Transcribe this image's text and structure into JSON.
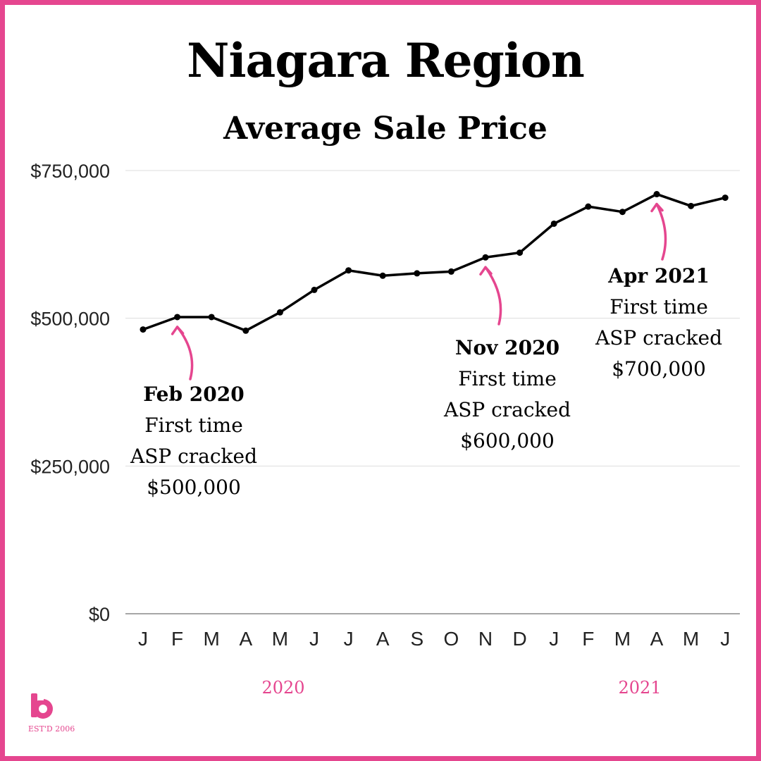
{
  "title": "Niagara Region",
  "subtitle": "Average Sale Price",
  "colors": {
    "accent": "#e5468f",
    "line": "#000000",
    "grid": "#dddddd"
  },
  "logo": {
    "icon": "b-monogram-icon",
    "text": "EST'D 2006"
  },
  "chart_data": {
    "type": "line",
    "title": "Niagara Region",
    "subtitle": "Average Sale Price",
    "categories": [
      "J",
      "F",
      "M",
      "A",
      "M",
      "J",
      "J",
      "A",
      "S",
      "O",
      "N",
      "D",
      "J",
      "F",
      "M",
      "A",
      "M",
      "J"
    ],
    "year_labels": [
      {
        "label": "2020",
        "from_index": 0,
        "to_index": 11
      },
      {
        "label": "2021",
        "from_index": 12,
        "to_index": 17
      }
    ],
    "series": [
      {
        "values": [
          481000,
          502000,
          502000,
          479000,
          510000,
          548000,
          581000,
          572000,
          576000,
          579000,
          603000,
          611000,
          660000,
          689000,
          680000,
          710000,
          690000,
          704000
        ]
      }
    ],
    "yticks": [
      0,
      250000,
      500000,
      750000
    ],
    "ytick_labels": [
      "$0",
      "$250,000",
      "$500,000",
      "$750,000"
    ],
    "ylim": [
      0,
      750000
    ],
    "grid": true,
    "annotations": [
      {
        "index": 1,
        "date": "Feb 2020",
        "line1": "First time",
        "line2": "ASP cracked",
        "line3": "$500,000"
      },
      {
        "index": 10,
        "date": "Nov 2020",
        "line1": "First time",
        "line2": "ASP cracked",
        "line3": "$600,000"
      },
      {
        "index": 15,
        "date": "Apr 2021",
        "line1": "First time",
        "line2": "ASP cracked",
        "line3": "$700,000"
      }
    ]
  }
}
